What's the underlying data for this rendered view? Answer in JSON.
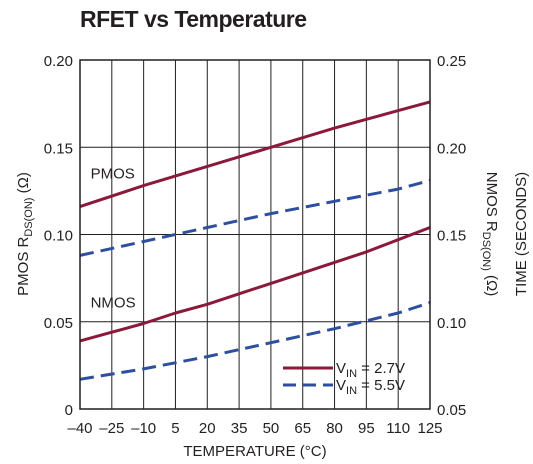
{
  "chart_data": {
    "type": "line",
    "title": "RFET vs Temperature",
    "xlabel": "TEMPERATURE (°C)",
    "ylabel_left": {
      "main": "PMOS R",
      "sub": "DS(ON)",
      "unit": " (Ω)"
    },
    "ylabel_right_inner": {
      "main": "NMOS R",
      "sub": "DS(ON)",
      "unit": " (Ω)"
    },
    "ylabel_right_outer": "TIME (SECONDS)",
    "x_ticks": [
      "–40",
      "–25",
      "–10",
      "5",
      "20",
      "35",
      "50",
      "65",
      "80",
      "95",
      "110",
      "125"
    ],
    "xlim": [
      -40,
      125
    ],
    "y_left_ticks": [
      "0",
      "0.05",
      "0.10",
      "0.15",
      "0.20"
    ],
    "ylim_left": [
      0,
      0.2
    ],
    "y_right_ticks": [
      "0.05",
      "0.10",
      "0.15",
      "0.20",
      "0.25"
    ],
    "ylim_right": [
      0.05,
      0.25
    ],
    "grid": true,
    "legend_position": "bottom-right",
    "curve_labels": [
      {
        "text": "PMOS",
        "x": -35,
        "y": 0.135
      },
      {
        "text": "NMOS",
        "x": -35,
        "y": 0.061
      }
    ],
    "series": [
      {
        "name_main": "V",
        "name_sub": "IN",
        "name_rest": " = 2.7V",
        "axis": "left",
        "color": "#8b1a3a",
        "style": "solid",
        "x": [
          -40,
          -10,
          20,
          50,
          80,
          95,
          110,
          125
        ],
        "y": [
          0.116,
          0.128,
          0.139,
          0.15,
          0.161,
          0.166,
          0.171,
          0.176
        ]
      },
      {
        "name_main": "V",
        "name_sub": "IN",
        "name_rest": " = 5.5V",
        "axis": "left",
        "color": "#2e4f9e",
        "style": "dashed",
        "x": [
          -40,
          -10,
          20,
          50,
          80,
          110,
          125
        ],
        "y": [
          0.088,
          0.096,
          0.104,
          0.112,
          0.119,
          0.126,
          0.131
        ]
      },
      {
        "name_main": "V",
        "name_sub": "IN",
        "name_rest": " = 2.7V",
        "axis": "right",
        "color": "#8b1a3a",
        "style": "solid",
        "x": [
          -40,
          -25,
          -10,
          5,
          20,
          35,
          50,
          65,
          80,
          95,
          110,
          125
        ],
        "y": [
          0.089,
          0.094,
          0.099,
          0.105,
          0.11,
          0.116,
          0.122,
          0.128,
          0.134,
          0.14,
          0.147,
          0.154
        ]
      },
      {
        "name_main": "V",
        "name_sub": "IN",
        "name_rest": " = 5.5V",
        "axis": "right",
        "color": "#2e4f9e",
        "style": "dashed",
        "x": [
          -40,
          -10,
          20,
          50,
          80,
          110,
          125
        ],
        "y": [
          0.067,
          0.073,
          0.08,
          0.088,
          0.096,
          0.105,
          0.111
        ]
      }
    ]
  }
}
